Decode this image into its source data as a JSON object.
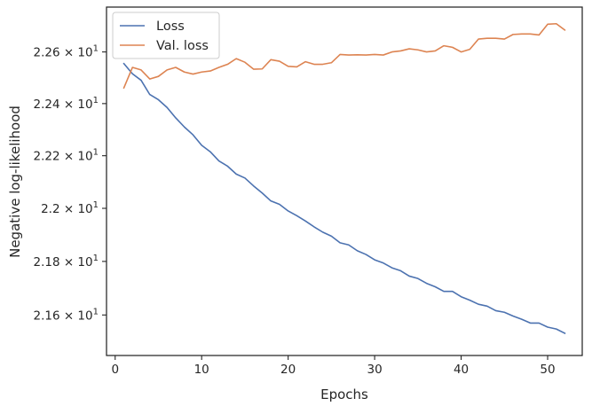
{
  "chart_data": {
    "type": "line",
    "title": "",
    "xlabel": "Epochs",
    "ylabel": "Negative log-likelihood",
    "xlim": [
      -1,
      54
    ],
    "ylim": [
      21.45,
      22.775
    ],
    "y_scale": "log",
    "grid": false,
    "legend_position": "top-left",
    "x_ticks": [
      0,
      10,
      20,
      30,
      40,
      50
    ],
    "x_tick_labels": [
      "0",
      "10",
      "20",
      "30",
      "40",
      "50"
    ],
    "y_ticks": [
      21.6,
      21.8,
      22.0,
      22.2,
      22.4,
      22.6
    ],
    "y_tick_labels": [
      {
        "mantissa": "2.16",
        "exp": "1"
      },
      {
        "mantissa": "2.18",
        "exp": "1"
      },
      {
        "mantissa": "2.2",
        "exp": "1"
      },
      {
        "mantissa": "2.22",
        "exp": "1"
      },
      {
        "mantissa": "2.24",
        "exp": "1"
      },
      {
        "mantissa": "2.26",
        "exp": "1"
      }
    ],
    "x": [
      1,
      2,
      3,
      4,
      5,
      6,
      7,
      8,
      9,
      10,
      11,
      12,
      13,
      14,
      15,
      16,
      17,
      18,
      19,
      20,
      21,
      22,
      23,
      24,
      25,
      26,
      27,
      28,
      29,
      30,
      31,
      32,
      33,
      34,
      35,
      36,
      37,
      38,
      39,
      40,
      41,
      42,
      43,
      44,
      45,
      46,
      47,
      48,
      49,
      50,
      51,
      52
    ],
    "series": [
      {
        "name": "Loss",
        "color": "#4c72b0",
        "values": [
          22.555,
          22.515,
          22.49,
          22.435,
          22.415,
          22.385,
          22.345,
          22.31,
          22.28,
          22.24,
          22.215,
          22.18,
          22.16,
          22.13,
          22.115,
          22.085,
          22.058,
          22.028,
          22.015,
          21.99,
          21.972,
          21.952,
          21.93,
          21.91,
          21.895,
          21.87,
          21.862,
          21.84,
          21.826,
          21.806,
          21.794,
          21.776,
          21.765,
          21.745,
          21.736,
          21.718,
          21.705,
          21.688,
          21.688,
          21.668,
          21.655,
          21.64,
          21.633,
          21.616,
          21.61,
          21.596,
          21.584,
          21.57,
          21.57,
          21.555,
          21.548,
          21.532
        ]
      },
      {
        "name": "Val. loss",
        "color": "#dd8452",
        "values": [
          22.46,
          22.54,
          22.53,
          22.495,
          22.505,
          22.53,
          22.54,
          22.522,
          22.514,
          22.522,
          22.526,
          22.54,
          22.552,
          22.574,
          22.56,
          22.533,
          22.534,
          22.57,
          22.564,
          22.544,
          22.542,
          22.562,
          22.552,
          22.552,
          22.558,
          22.59,
          22.588,
          22.589,
          22.588,
          22.59,
          22.588,
          22.6,
          22.604,
          22.612,
          22.608,
          22.6,
          22.604,
          22.624,
          22.618,
          22.6,
          22.61,
          22.65,
          22.653,
          22.653,
          22.65,
          22.668,
          22.67,
          22.67,
          22.666,
          22.708,
          22.71,
          22.685
        ]
      }
    ]
  }
}
